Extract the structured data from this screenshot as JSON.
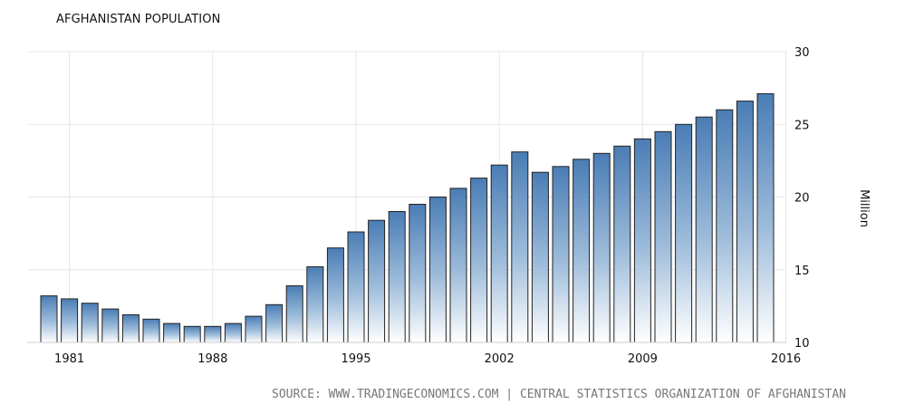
{
  "chart_data": {
    "type": "bar",
    "title": "AFGHANISTAN POPULATION",
    "xlabel": "",
    "ylabel": "Million",
    "x_ticks": [
      "1981",
      "1988",
      "1995",
      "2002",
      "2009",
      "2016"
    ],
    "y_ticks": [
      "10",
      "15",
      "20",
      "25",
      "30"
    ],
    "ylim": [
      10,
      30
    ],
    "grid": true,
    "bar_color": "#4a7db5",
    "categories": [
      1980,
      1981,
      1982,
      1983,
      1984,
      1985,
      1986,
      1987,
      1988,
      1989,
      1990,
      1991,
      1992,
      1993,
      1994,
      1995,
      1996,
      1997,
      1998,
      1999,
      2000,
      2001,
      2002,
      2003,
      2004,
      2005,
      2006,
      2007,
      2008,
      2009,
      2010,
      2011,
      2012,
      2013,
      2014,
      2015
    ],
    "values": [
      13.2,
      13.0,
      12.7,
      12.3,
      11.9,
      11.6,
      11.3,
      11.1,
      11.1,
      11.3,
      11.8,
      12.6,
      13.9,
      15.2,
      16.5,
      17.6,
      18.4,
      19.0,
      19.5,
      20.0,
      20.6,
      21.3,
      22.2,
      23.1,
      21.7,
      22.1,
      22.6,
      23.0,
      23.5,
      24.0,
      24.5,
      25.0,
      25.5,
      26.0,
      26.6,
      27.1
    ]
  },
  "source_text": "SOURCE: WWW.TRADINGECONOMICS.COM | CENTRAL STATISTICS ORGANIZATION OF AFGHANISTAN"
}
